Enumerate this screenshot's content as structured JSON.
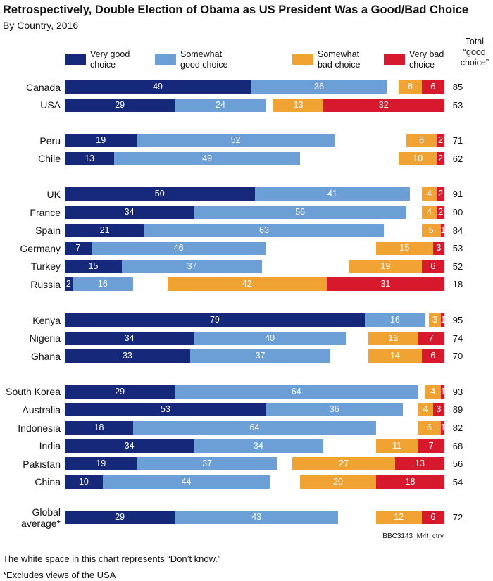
{
  "chart_data": {
    "type": "bar",
    "orientation": "horizontal",
    "diverging": true,
    "title": "Retrospectively, Double Election of Obama as US President Was a Good/Bad Choice",
    "subtitle": "By Country, 2016",
    "xlim": [
      0,
      100
    ],
    "categories": [
      "Canada",
      "USA",
      "Peru",
      "Chile",
      "UK",
      "France",
      "Spain",
      "Germany",
      "Turkey",
      "Russia",
      "Kenya",
      "Nigeria",
      "Ghana",
      "South Korea",
      "Australia",
      "Indonesia",
      "India",
      "Pakistan",
      "China",
      "Global\naverage*"
    ],
    "series": [
      {
        "name": "Very good\nchoice",
        "color": "#16287a",
        "values": [
          49,
          29,
          19,
          13,
          50,
          34,
          21,
          7,
          15,
          2,
          79,
          34,
          33,
          29,
          53,
          18,
          34,
          19,
          10,
          29
        ]
      },
      {
        "name": "Somewhat\ngood choice",
        "color": "#6b9fd6",
        "values": [
          36,
          24,
          52,
          49,
          41,
          56,
          63,
          46,
          37,
          16,
          16,
          40,
          37,
          64,
          36,
          64,
          34,
          37,
          44,
          43
        ]
      },
      {
        "name": "Somewhat\nbad choice",
        "color": "#f0a332",
        "values": [
          6,
          13,
          8,
          10,
          4,
          4,
          5,
          15,
          19,
          42,
          3,
          13,
          14,
          4,
          4,
          6,
          11,
          27,
          20,
          12
        ]
      },
      {
        "name": "Very bad\nchoice",
        "color": "#d7192d",
        "values": [
          6,
          32,
          2,
          2,
          2,
          2,
          1,
          3,
          6,
          31,
          1,
          7,
          6,
          1,
          3,
          1,
          7,
          13,
          18,
          6
        ]
      }
    ],
    "total_label": "Total\n“good\nchoice”",
    "totals": [
      85,
      53,
      71,
      62,
      91,
      90,
      84,
      53,
      52,
      18,
      95,
      74,
      70,
      93,
      89,
      82,
      68,
      56,
      54,
      72
    ],
    "source": "BBC3143_M4t_ctry",
    "notes": [
      "The white space in this chart represents “Don’t know.”",
      "*Excludes views of the USA"
    ]
  }
}
